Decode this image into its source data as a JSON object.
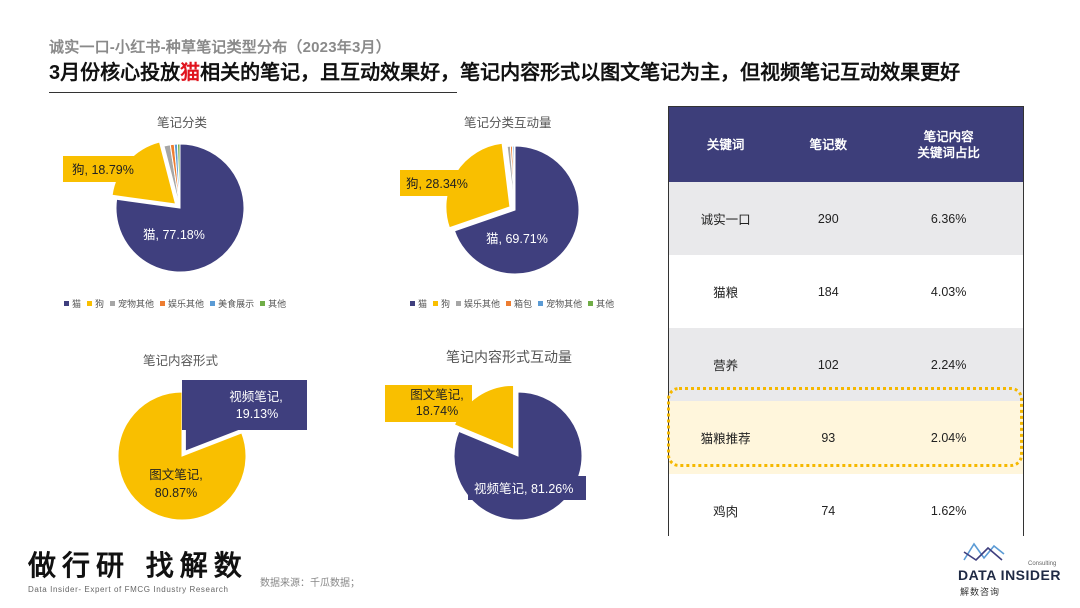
{
  "header": {
    "subtitle": "诚实一口-小红书-种草笔记类型分布（2023年3月）",
    "headline_pre": "3月份核心投放",
    "headline_highlight": "猫",
    "headline_post": "相关的笔记，且互动效果好，笔记内容形式以图文笔记为主，但视频笔记互动效果更好"
  },
  "colors": {
    "navy": "#3f3f7e",
    "yellow": "#f9bf00",
    "gray": "#a6a6a6",
    "orange": "#ed7d31",
    "blue": "#5b9bd5",
    "green": "#70ad47",
    "highlight": "#e0141e"
  },
  "chart_data": [
    {
      "type": "pie",
      "title": "笔记分类",
      "slices": [
        {
          "name": "猫",
          "value": 77.18,
          "label": "猫, 77.18%"
        },
        {
          "name": "狗",
          "value": 18.79,
          "label": "狗, 18.79%"
        },
        {
          "name": "宠物其他",
          "value": 1.6
        },
        {
          "name": "娱乐其他",
          "value": 1.0
        },
        {
          "name": "美食展示",
          "value": 0.8
        },
        {
          "name": "其他",
          "value": 0.63
        }
      ],
      "legend": [
        "猫",
        "狗",
        "宠物其他",
        "娱乐其他",
        "美食展示",
        "其他"
      ]
    },
    {
      "type": "pie",
      "title": "笔记分类互动量",
      "slices": [
        {
          "name": "猫",
          "value": 69.71,
          "label": "猫, 69.71%"
        },
        {
          "name": "狗",
          "value": 28.34,
          "label": "狗, 28.34%"
        },
        {
          "name": "娱乐其他",
          "value": 0.8
        },
        {
          "name": "箱包",
          "value": 0.5
        },
        {
          "name": "宠物其他",
          "value": 0.4
        },
        {
          "name": "其他",
          "value": 0.25
        }
      ],
      "legend": [
        "猫",
        "狗",
        "娱乐其他",
        "箱包",
        "宠物其他",
        "其他"
      ]
    },
    {
      "type": "pie",
      "title": "笔记内容形式",
      "slices": [
        {
          "name": "视频笔记",
          "value": 19.13,
          "label_line1": "视频笔记,",
          "label_line2": "19.13%"
        },
        {
          "name": "图文笔记",
          "value": 80.87,
          "label_line1": "图文笔记,",
          "label_line2": "80.87%"
        }
      ]
    },
    {
      "type": "pie",
      "title": "笔记内容形式互动量",
      "slices": [
        {
          "name": "视频笔记",
          "value": 81.26,
          "label": "视频笔记, 81.26%"
        },
        {
          "name": "图文笔记",
          "value": 18.74,
          "label_line1": "图文笔记,",
          "label_line2": "18.74%"
        }
      ]
    },
    {
      "type": "table",
      "columns": [
        "关键词",
        "笔记数",
        "笔记内容",
        "关键词占比"
      ],
      "rows": [
        {
          "keyword": "诚实一口",
          "count": "290",
          "ratio": "6.36%"
        },
        {
          "keyword": "猫粮",
          "count": "184",
          "ratio": "4.03%"
        },
        {
          "keyword": "营养",
          "count": "102",
          "ratio": "2.24%"
        },
        {
          "keyword": "猫粮推荐",
          "count": "93",
          "ratio": "2.04%"
        },
        {
          "keyword": "鸡肉",
          "count": "74",
          "ratio": "1.62%"
        }
      ]
    }
  ],
  "footer": {
    "brand": "做行研 找解数",
    "brand_sub": "Data Insider- Expert of FMCG Industry Research",
    "source": "数据来源：千瓜数据；",
    "logo_name": "DATA INSIDER",
    "logo_cn": "解数咨询",
    "logo_small": "Consulting"
  }
}
